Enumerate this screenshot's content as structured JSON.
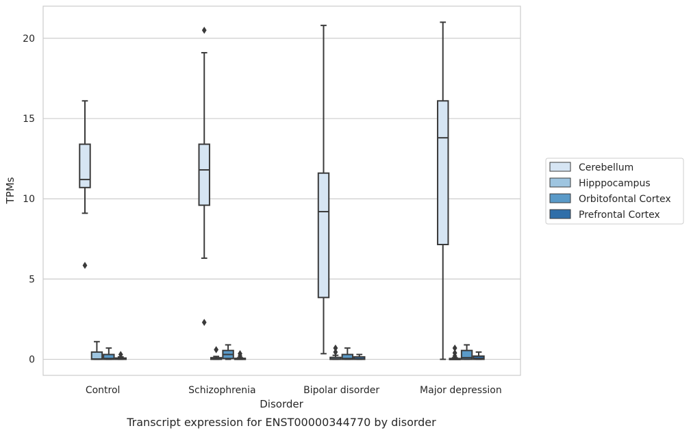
{
  "chart_data": {
    "type": "boxplot",
    "caption": "Transcript expression for ENST00000344770 by disorder",
    "xlabel": "Disorder",
    "ylabel": "TPMs",
    "ylim": [
      -1,
      22
    ],
    "yticks": [
      0,
      5,
      10,
      15,
      20
    ],
    "grid": true,
    "legend_position": "right",
    "categories": [
      "Control",
      "Schizophrenia",
      "Bipolar disorder",
      "Major depression"
    ],
    "series": [
      {
        "name": "Cerebellum",
        "color": "#d6e5f3",
        "boxes": [
          {
            "whislo": 9.1,
            "q1": 10.7,
            "med": 11.2,
            "q3": 13.4,
            "whishi": 16.1,
            "fliers": [
              5.85
            ]
          },
          {
            "whislo": 6.3,
            "q1": 9.6,
            "med": 11.8,
            "q3": 13.4,
            "whishi": 19.1,
            "fliers": [
              2.3,
              20.5
            ]
          },
          {
            "whislo": 0.35,
            "q1": 3.85,
            "med": 9.2,
            "q3": 11.6,
            "whishi": 20.8,
            "fliers": []
          },
          {
            "whislo": 0.0,
            "q1": 7.15,
            "med": 13.8,
            "q3": 16.1,
            "whishi": 21.0,
            "fliers": []
          }
        ]
      },
      {
        "name": "Hipppocampus",
        "color": "#9ec5e0",
        "boxes": [
          {
            "whislo": 0.0,
            "q1": 0.0,
            "med": 0.02,
            "q3": 0.45,
            "whishi": 1.1,
            "fliers": []
          },
          {
            "whislo": 0.0,
            "q1": 0.0,
            "med": 0.02,
            "q3": 0.1,
            "whishi": 0.18,
            "fliers": [
              0.6
            ]
          },
          {
            "whislo": 0.0,
            "q1": 0.0,
            "med": 0.02,
            "q3": 0.12,
            "whishi": 0.25,
            "fliers": [
              0.45,
              0.7
            ]
          },
          {
            "whislo": 0.0,
            "q1": 0.0,
            "med": 0.01,
            "q3": 0.05,
            "whishi": 0.1,
            "fliers": [
              0.2,
              0.4,
              0.7
            ]
          }
        ]
      },
      {
        "name": "Orbitofontal Cortex",
        "color": "#5a9ac8",
        "boxes": [
          {
            "whislo": 0.0,
            "q1": 0.0,
            "med": 0.05,
            "q3": 0.3,
            "whishi": 0.7,
            "fliers": []
          },
          {
            "whislo": 0.0,
            "q1": 0.05,
            "med": 0.3,
            "q3": 0.55,
            "whishi": 0.9,
            "fliers": []
          },
          {
            "whislo": 0.0,
            "q1": 0.0,
            "med": 0.05,
            "q3": 0.3,
            "whishi": 0.7,
            "fliers": []
          },
          {
            "whislo": 0.0,
            "q1": 0.0,
            "med": 0.1,
            "q3": 0.55,
            "whishi": 0.9,
            "fliers": []
          }
        ]
      },
      {
        "name": "Prefrontal Cortex",
        "color": "#2f6ea9",
        "boxes": [
          {
            "whislo": 0.0,
            "q1": 0.0,
            "med": 0.02,
            "q3": 0.08,
            "whishi": 0.15,
            "fliers": [
              0.3
            ]
          },
          {
            "whislo": 0.0,
            "q1": 0.0,
            "med": 0.02,
            "q3": 0.06,
            "whishi": 0.1,
            "fliers": [
              0.2,
              0.35
            ]
          },
          {
            "whislo": 0.0,
            "q1": 0.0,
            "med": 0.02,
            "q3": 0.15,
            "whishi": 0.3,
            "fliers": []
          },
          {
            "whislo": 0.0,
            "q1": 0.0,
            "med": 0.05,
            "q3": 0.2,
            "whishi": 0.45,
            "fliers": []
          }
        ]
      }
    ]
  }
}
